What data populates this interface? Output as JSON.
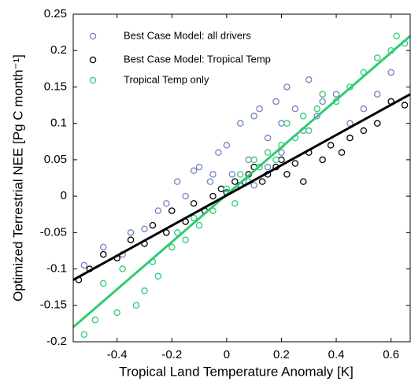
{
  "chart_data": {
    "type": "scatter",
    "xlabel": "Tropical Land Temperature Anomaly [K]",
    "ylabel": "Optimized Terrestrial NEE [Pg C month⁻¹]",
    "xlim": [
      -0.56,
      0.67
    ],
    "ylim": [
      -0.2,
      0.25
    ],
    "xticks": [
      -0.4,
      -0.2,
      0,
      0.2,
      0.4,
      0.6
    ],
    "yticks": [
      -0.2,
      -0.15,
      -0.1,
      -0.05,
      0,
      0.05,
      0.1,
      0.15,
      0.2,
      0.25
    ],
    "legend": "upper left",
    "series": [
      {
        "name": "Best Case Model: all drivers",
        "color": "#7383c2",
        "x": [
          -0.52,
          -0.45,
          -0.38,
          -0.35,
          -0.3,
          -0.25,
          -0.22,
          -0.18,
          -0.15,
          -0.12,
          -0.1,
          -0.06,
          -0.03,
          0,
          0.02,
          0.05,
          0.08,
          0.1,
          0.12,
          0.15,
          0.18,
          0.2,
          0.22,
          0.25,
          0.28,
          0.3,
          0.33,
          0.35,
          0.4,
          0.45,
          0.5,
          0.55,
          0.6,
          0.2,
          0.1,
          -0.05,
          0.15
        ],
        "values": [
          -0.095,
          -0.07,
          -0.08,
          -0.05,
          -0.045,
          -0.02,
          -0.01,
          0.02,
          0,
          0.035,
          0.04,
          0.02,
          0.06,
          0.07,
          0.03,
          0.1,
          0.05,
          0.11,
          0.12,
          0.08,
          0.13,
          0.1,
          0.15,
          0.12,
          0.09,
          0.16,
          0.11,
          0.13,
          0.14,
          0.1,
          0.12,
          0.14,
          0.17,
          0.06,
          0.015,
          0.03,
          0.04
        ]
      },
      {
        "name": "Best Case Model: Tropical Temp",
        "color": "#000000",
        "x": [
          -0.54,
          -0.5,
          -0.45,
          -0.4,
          -0.35,
          -0.3,
          -0.27,
          -0.22,
          -0.2,
          -0.15,
          -0.12,
          -0.08,
          -0.05,
          -0.02,
          0,
          0.03,
          0.05,
          0.08,
          0.1,
          0.13,
          0.15,
          0.18,
          0.2,
          0.22,
          0.25,
          0.28,
          0.3,
          0.35,
          0.38,
          0.42,
          0.45,
          0.5,
          0.55,
          0.6,
          0.65
        ],
        "values": [
          -0.115,
          -0.1,
          -0.08,
          -0.085,
          -0.06,
          -0.065,
          -0.04,
          -0.05,
          -0.02,
          -0.035,
          -0.01,
          -0.02,
          0,
          0.01,
          0.005,
          0.02,
          0.015,
          0.03,
          0.04,
          0.02,
          0.03,
          0.04,
          0.05,
          0.03,
          0.045,
          0.02,
          0.06,
          0.05,
          0.07,
          0.06,
          0.08,
          0.09,
          0.1,
          0.13,
          0.125
        ]
      },
      {
        "name": "Tropical Temp only",
        "color": "#2fcb73",
        "x": [
          -0.52,
          -0.48,
          -0.45,
          -0.4,
          -0.38,
          -0.33,
          -0.3,
          -0.27,
          -0.25,
          -0.2,
          -0.18,
          -0.15,
          -0.12,
          -0.1,
          -0.05,
          0,
          0.03,
          0.05,
          0.08,
          0.1,
          0.12,
          0.15,
          0.18,
          0.2,
          0.22,
          0.25,
          0.28,
          0.3,
          0.33,
          0.35,
          0.4,
          0.45,
          0.5,
          0.55,
          0.6,
          0.62,
          0.65
        ],
        "values": [
          -0.19,
          -0.17,
          -0.12,
          -0.16,
          -0.1,
          -0.15,
          -0.13,
          -0.09,
          -0.11,
          -0.07,
          -0.05,
          -0.06,
          -0.03,
          -0.04,
          -0.02,
          0.01,
          -0.01,
          0.03,
          0.02,
          0.05,
          0.04,
          0.06,
          0.05,
          0.07,
          0.1,
          0.08,
          0.11,
          0.09,
          0.12,
          0.14,
          0.13,
          0.15,
          0.17,
          0.19,
          0.2,
          0.22,
          0.21
        ]
      }
    ],
    "fit_lines": [
      {
        "color": "#2fcb73",
        "x": [
          -0.56,
          0.67
        ],
        "values": [
          -0.18,
          0.22
        ]
      },
      {
        "color": "#000000",
        "x": [
          -0.56,
          0.67
        ],
        "values": [
          -0.115,
          0.14
        ]
      }
    ]
  }
}
